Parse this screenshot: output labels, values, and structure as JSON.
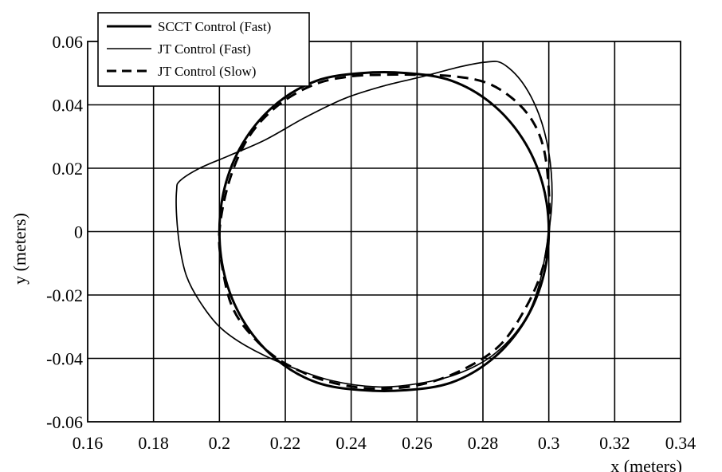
{
  "chart_data": {
    "type": "line",
    "title": "",
    "xlabel": "x (meters)",
    "ylabel": "y (meters)",
    "xlim": [
      0.16,
      0.34
    ],
    "ylim": [
      -0.06,
      0.06
    ],
    "x_ticks": [
      "0.16",
      "0.18",
      "0.2",
      "0.22",
      "0.24",
      "0.26",
      "0.28",
      "0.3",
      "0.32",
      "0.34"
    ],
    "y_ticks": [
      "0.06",
      "0.04",
      "0.02",
      "0",
      "-0.02",
      "-0.04",
      "-0.06"
    ],
    "grid": true,
    "legend_position": "top-left",
    "series": [
      {
        "name": "SCCT Control (Fast)",
        "style": "solid",
        "color": "#000000",
        "points": [
          [
            0.3,
            0.0
          ],
          [
            0.298,
            0.0155
          ],
          [
            0.292,
            0.0294
          ],
          [
            0.2825,
            0.0405
          ],
          [
            0.2705,
            0.0476
          ],
          [
            0.257,
            0.05
          ],
          [
            0.243,
            0.05
          ],
          [
            0.2295,
            0.0476
          ],
          [
            0.2175,
            0.0405
          ],
          [
            0.208,
            0.0294
          ],
          [
            0.202,
            0.0155
          ],
          [
            0.2,
            0.0
          ],
          [
            0.202,
            -0.0155
          ],
          [
            0.208,
            -0.0294
          ],
          [
            0.2175,
            -0.0405
          ],
          [
            0.2295,
            -0.0476
          ],
          [
            0.243,
            -0.05
          ],
          [
            0.257,
            -0.05
          ],
          [
            0.2705,
            -0.0476
          ],
          [
            0.2825,
            -0.0405
          ],
          [
            0.292,
            -0.0294
          ],
          [
            0.298,
            -0.0155
          ],
          [
            0.3,
            0.0
          ]
        ]
      },
      {
        "name": "JT Control (Fast)",
        "style": "solid-thin",
        "color": "#000000",
        "points": [
          [
            0.3,
            0.0
          ],
          [
            0.301,
            0.012
          ],
          [
            0.3,
            0.025
          ],
          [
            0.297,
            0.037
          ],
          [
            0.292,
            0.047
          ],
          [
            0.286,
            0.053
          ],
          [
            0.281,
            0.0535
          ],
          [
            0.273,
            0.052
          ],
          [
            0.262,
            0.049
          ],
          [
            0.25,
            0.046
          ],
          [
            0.238,
            0.042
          ],
          [
            0.226,
            0.036
          ],
          [
            0.214,
            0.029
          ],
          [
            0.203,
            0.024
          ],
          [
            0.194,
            0.02
          ],
          [
            0.188,
            0.016
          ],
          [
            0.187,
            0.013
          ],
          [
            0.187,
            0.005
          ],
          [
            0.188,
            -0.005
          ],
          [
            0.19,
            -0.014
          ],
          [
            0.194,
            -0.022
          ],
          [
            0.2,
            -0.03
          ],
          [
            0.208,
            -0.036
          ],
          [
            0.22,
            -0.042
          ],
          [
            0.234,
            -0.047
          ],
          [
            0.248,
            -0.049
          ],
          [
            0.26,
            -0.048
          ],
          [
            0.272,
            -0.045
          ],
          [
            0.283,
            -0.039
          ],
          [
            0.292,
            -0.029
          ],
          [
            0.297,
            -0.017
          ],
          [
            0.3,
            0.0
          ]
        ]
      },
      {
        "name": "JT Control (Slow)",
        "style": "dashed",
        "color": "#000000",
        "points": [
          [
            0.3,
            0.0
          ],
          [
            0.3,
            0.013
          ],
          [
            0.2985,
            0.026
          ],
          [
            0.295,
            0.035
          ],
          [
            0.289,
            0.042
          ],
          [
            0.281,
            0.047
          ],
          [
            0.271,
            0.049
          ],
          [
            0.26,
            0.0495
          ],
          [
            0.25,
            0.0495
          ],
          [
            0.24,
            0.049
          ],
          [
            0.229,
            0.0465
          ],
          [
            0.218,
            0.04
          ],
          [
            0.209,
            0.03
          ],
          [
            0.203,
            0.016
          ],
          [
            0.2,
            0.0
          ],
          [
            0.201,
            -0.012
          ],
          [
            0.204,
            -0.024
          ],
          [
            0.21,
            -0.033
          ],
          [
            0.219,
            -0.041
          ],
          [
            0.232,
            -0.047
          ],
          [
            0.246,
            -0.0495
          ],
          [
            0.26,
            -0.0485
          ],
          [
            0.273,
            -0.044
          ],
          [
            0.285,
            -0.036
          ],
          [
            0.293,
            -0.024
          ],
          [
            0.298,
            -0.012
          ],
          [
            0.3,
            0.0
          ]
        ]
      }
    ]
  }
}
